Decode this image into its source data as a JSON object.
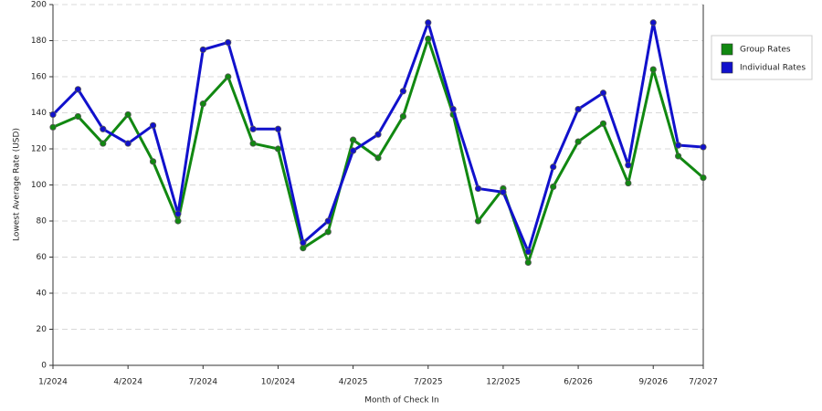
{
  "chart_data": {
    "type": "line",
    "x_label": "Month of Check In",
    "y_label": "Lowest Average Rate (USD)",
    "categories": [
      "1/2024",
      null,
      null,
      "4/2024",
      null,
      null,
      "7/2024",
      null,
      null,
      "10/2024",
      null,
      null,
      "4/2025",
      null,
      null,
      "7/2025",
      null,
      null,
      "12/2025",
      null,
      null,
      "6/2026",
      null,
      null,
      "9/2026",
      null,
      "7/2027"
    ],
    "series": [
      {
        "name": "Group Rates",
        "color": "#118811",
        "values": [
          132,
          138,
          123,
          139,
          113,
          80,
          145,
          160,
          123,
          120,
          65,
          74,
          125,
          115,
          138,
          181,
          139,
          80,
          98,
          57,
          99,
          124,
          134,
          101,
          164,
          116,
          104
        ]
      },
      {
        "name": "Individual Rates",
        "color": "#1111cc",
        "values": [
          139,
          153,
          131,
          123,
          133,
          84,
          175,
          179,
          131,
          131,
          68,
          80,
          119,
          128,
          152,
          190,
          142,
          98,
          96,
          63,
          110,
          142,
          151,
          111,
          190,
          122,
          121
        ]
      }
    ],
    "ylim": [
      0,
      200
    ],
    "yticks": [
      0,
      20,
      40,
      60,
      80,
      100,
      120,
      140,
      160,
      180,
      200
    ],
    "grid": true,
    "legend": "right"
  }
}
